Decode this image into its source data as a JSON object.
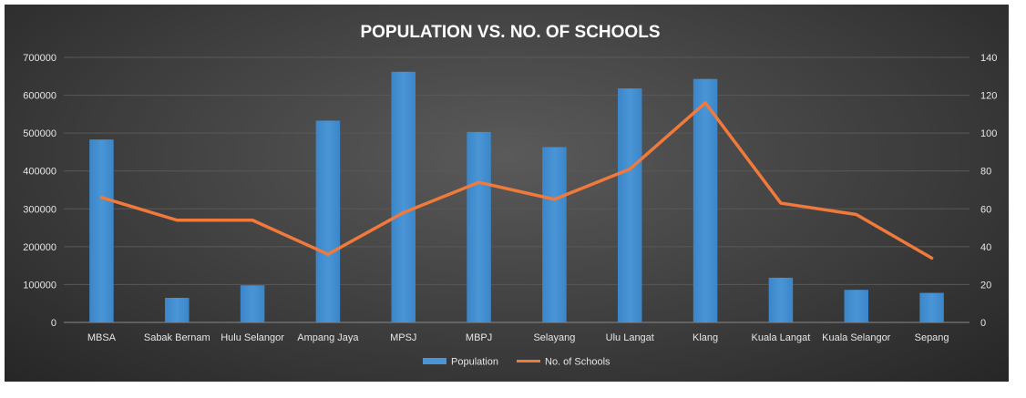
{
  "chart_data": {
    "type": "bar+line",
    "title": "POPULATION VS. NO. OF SCHOOLS",
    "categories": [
      "MBSA",
      "Sabak Bernam",
      "Hulu Selangor",
      "Ampang Jaya",
      "MPSJ",
      "MBPJ",
      "Selayang",
      "Ulu Langat",
      "Klang",
      "Kuala Langat",
      "Kuala Selangor",
      "Sepang"
    ],
    "series": [
      {
        "name": "Population",
        "type": "bar",
        "axis": "left",
        "color": "#4a95d6",
        "values": [
          483000,
          65000,
          98000,
          533000,
          662000,
          503000,
          463000,
          618000,
          643000,
          118000,
          86000,
          78000
        ]
      },
      {
        "name": "No. of Schools",
        "type": "line",
        "axis": "right",
        "color": "#f07a3c",
        "values": [
          66,
          54,
          54,
          36,
          58,
          74,
          65,
          81,
          116,
          63,
          57,
          34
        ]
      }
    ],
    "yleft": {
      "min": 0,
      "max": 700000,
      "ticks": [
        "0",
        "100000",
        "200000",
        "300000",
        "400000",
        "500000",
        "600000",
        "700000"
      ]
    },
    "yright": {
      "min": 0,
      "max": 140,
      "ticks": [
        "0",
        "20",
        "40",
        "60",
        "80",
        "100",
        "120",
        "140"
      ]
    },
    "grid": true,
    "legend": "bottom"
  }
}
